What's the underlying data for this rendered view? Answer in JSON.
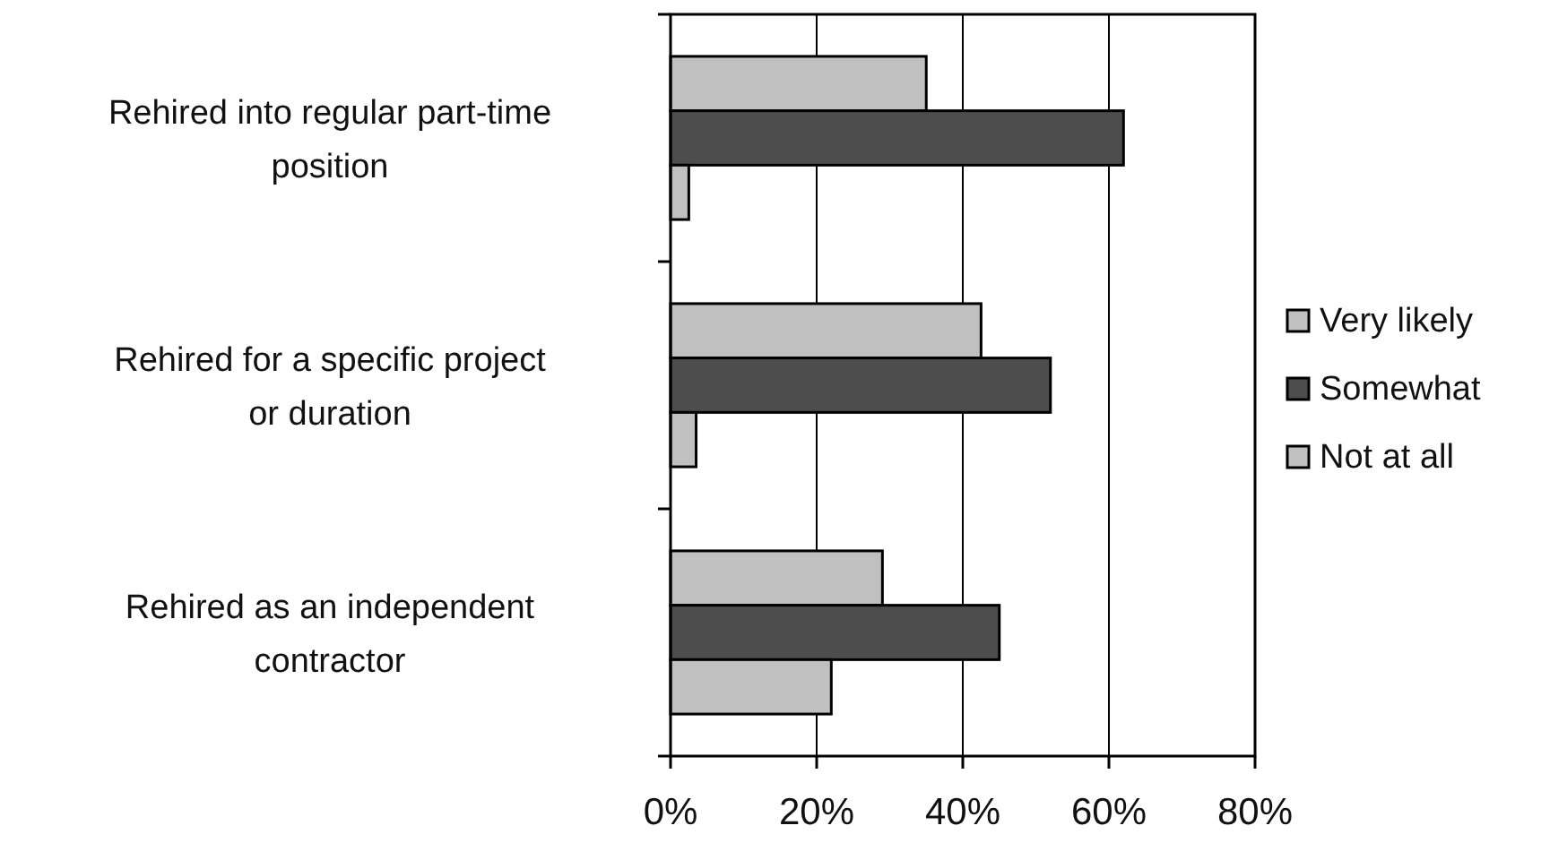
{
  "chart_data": {
    "type": "bar",
    "orientation": "horizontal",
    "categories": [
      "Rehired into regular part-time position",
      "Rehired for a specific project or duration",
      "Rehired as an independent contractor"
    ],
    "series": [
      {
        "name": "Very likely",
        "color": "#c0c0c0",
        "values": [
          35,
          42.5,
          29
        ]
      },
      {
        "name": "Somewhat",
        "color": "#4d4d4d",
        "values": [
          62,
          52,
          45
        ]
      },
      {
        "name": "Not at all",
        "color": "#c0c0c0",
        "values": [
          2.5,
          3.5,
          22
        ]
      }
    ],
    "xlim": [
      0,
      80
    ],
    "xticks": [
      {
        "value": 0,
        "label": "0%"
      },
      {
        "value": 20,
        "label": "20%"
      },
      {
        "value": 40,
        "label": "40%"
      },
      {
        "value": 60,
        "label": "60%"
      },
      {
        "value": 80,
        "label": "80%"
      }
    ],
    "grid": "x",
    "legend": "right"
  }
}
